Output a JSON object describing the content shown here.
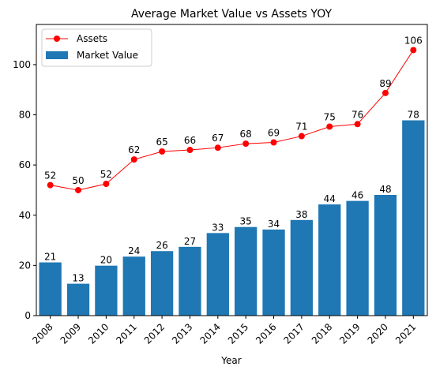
{
  "chart_data": {
    "type": "bar",
    "title": "Average Market Value vs Assets YOY",
    "xlabel": "Year",
    "ylabel": "",
    "ylim": [
      0,
      116
    ],
    "yticks": [
      0,
      20,
      40,
      60,
      80,
      100
    ],
    "categories": [
      "2008",
      "2009",
      "2010",
      "2011",
      "2012",
      "2013",
      "2014",
      "2015",
      "2016",
      "2017",
      "2018",
      "2019",
      "2020",
      "2021"
    ],
    "series": [
      {
        "name": "Market Value",
        "kind": "bar",
        "color": "#1f77b4",
        "values": [
          21.2,
          12.7,
          19.9,
          23.5,
          25.7,
          27.4,
          32.9,
          35.3,
          34.3,
          38.1,
          44.3,
          45.7,
          48.1,
          77.8
        ],
        "labels": [
          "21",
          "13",
          "20",
          "24",
          "26",
          "27",
          "33",
          "35",
          "34",
          "38",
          "44",
          "46",
          "48",
          "78"
        ]
      },
      {
        "name": "Assets",
        "kind": "line",
        "color": "#ff0000",
        "marker": "circle",
        "values": [
          52.0,
          50.0,
          52.5,
          62.2,
          65.4,
          66.0,
          66.9,
          68.5,
          69.0,
          71.5,
          75.3,
          76.3,
          88.7,
          105.8
        ],
        "labels": [
          "52",
          "50",
          "52",
          "62",
          "65",
          "66",
          "67",
          "68",
          "69",
          "71",
          "75",
          "76",
          "89",
          "106"
        ]
      }
    ],
    "legend": {
      "placement": "top-left",
      "entries": [
        "Assets",
        "Market Value"
      ]
    },
    "grid": false
  }
}
